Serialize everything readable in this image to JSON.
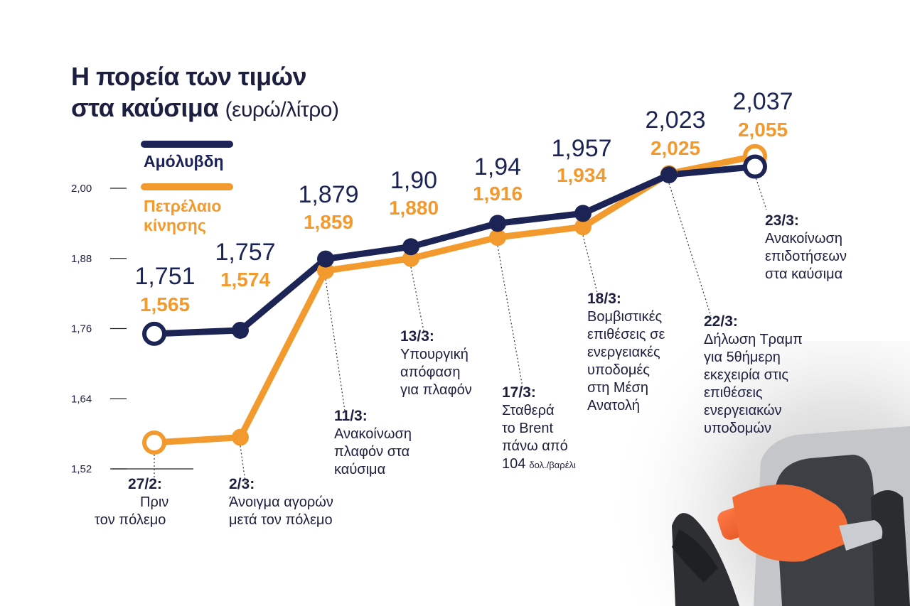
{
  "title": {
    "line1": "Η πορεία των τιμών",
    "line2": "στα καύσιμα",
    "unit": "(ευρώ/λίτρο)"
  },
  "legend": {
    "position": "top-left",
    "unleaded": "Αμόλυβδη",
    "diesel_line1": "Πετρέλαιο",
    "diesel_line2": "κίνησης"
  },
  "colors": {
    "unleaded": "#1c2456",
    "diesel": "#f29a2e",
    "text": "#1c1f3f",
    "axis": "#222222"
  },
  "chart_data": {
    "type": "line",
    "ylim": [
      1.52,
      2.0
    ],
    "yticks": [
      "2,00",
      "1,88",
      "1,76",
      "1,64",
      "1,52"
    ],
    "ytick_values": [
      2.0,
      1.88,
      1.76,
      1.64,
      1.52
    ],
    "x": [
      "27/2",
      "2/3",
      "11/3",
      "13/3",
      "17/3",
      "18/3",
      "22/3",
      "23/3"
    ],
    "series": [
      {
        "name": "Αμόλυβδη",
        "values": [
          1.751,
          1.757,
          1.879,
          1.9,
          1.94,
          1.957,
          2.023,
          2.037
        ],
        "labels": [
          "1,751",
          "1,757",
          "1,879",
          "1,90",
          "1,94",
          "1,957",
          "2,023",
          "2,037"
        ]
      },
      {
        "name": "Πετρέλαιο κίνησης",
        "values": [
          1.565,
          1.574,
          1.859,
          1.88,
          1.916,
          1.934,
          2.025,
          2.055
        ],
        "labels": [
          "1,565",
          "1,574",
          "1,859",
          "1,880",
          "1,916",
          "1,934",
          "2,025",
          "2,055"
        ]
      }
    ],
    "annotations": [
      {
        "date": "27/2:",
        "lines": [
          "Πριν",
          "τον πόλεμο"
        ]
      },
      {
        "date": "2/3:",
        "lines": [
          "Άνοιγμα αγορών",
          "μετά τον πόλεμο"
        ]
      },
      {
        "date": "11/3:",
        "lines": [
          "Ανακοίνωση",
          "πλαφόν στα",
          "καύσιμα"
        ]
      },
      {
        "date": "13/3:",
        "lines": [
          "Υπουργική",
          "απόφαση",
          "για πλαφόν"
        ]
      },
      {
        "date": "17/3:",
        "lines": [
          "Σταθερά",
          "το Brent",
          "πάνω από",
          "104"
        ],
        "small": "δολ./βαρέλι"
      },
      {
        "date": "18/3:",
        "lines": [
          "Βομβιστικές",
          "επιθέσεις σε",
          "ενεργειακές",
          "υποδομές",
          "στη Μέση",
          "Ανατολή"
        ]
      },
      {
        "date": "22/3:",
        "lines": [
          "Δήλωση Τραμπ",
          "για 5θήμερη",
          "εκεχειρία στις",
          "επιθέσεις",
          "ενεργειακών",
          "υποδομών"
        ]
      },
      {
        "date": "23/3:",
        "lines": [
          "Ανακοίνωση",
          "επιδοτήσεων",
          "στα καύσιμα"
        ]
      }
    ],
    "grid": false
  }
}
